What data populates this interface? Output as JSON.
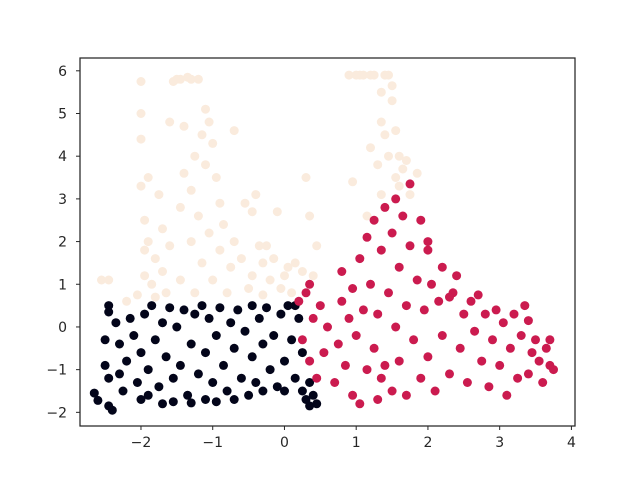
{
  "chart_data": {
    "type": "scatter",
    "title": "",
    "xlabel": "",
    "ylabel": "",
    "xlim": [
      -2.85,
      4.05
    ],
    "ylim": [
      -2.32,
      6.3
    ],
    "xticks": [
      -2,
      -1,
      0,
      1,
      2,
      3,
      4
    ],
    "yticks": [
      -2,
      -1,
      0,
      1,
      2,
      3,
      4,
      5,
      6
    ],
    "xtick_labels": [
      "−2",
      "−1",
      "0",
      "1",
      "2",
      "3",
      "4"
    ],
    "ytick_labels": [
      "−2",
      "−1",
      "0",
      "1",
      "2",
      "3",
      "4",
      "5",
      "6"
    ],
    "grid": false,
    "legend": "none",
    "colors": {
      "cluster_0": "#03051a",
      "cluster_1": "#faebdd",
      "cluster_2": "#cb1b4f"
    },
    "series": [
      {
        "cluster": 0,
        "color": "#03051a",
        "points": [
          [
            -2.65,
            -1.55
          ],
          [
            -2.6,
            -1.72
          ],
          [
            -2.45,
            -1.85
          ],
          [
            -2.4,
            -1.95
          ],
          [
            -2.45,
            0.5
          ],
          [
            -2.45,
            0.35
          ],
          [
            -2.5,
            -0.3
          ],
          [
            -2.5,
            -0.9
          ],
          [
            -2.45,
            -1.2
          ],
          [
            -2.35,
            0.1
          ],
          [
            -2.3,
            -0.4
          ],
          [
            -2.3,
            -1.1
          ],
          [
            -2.25,
            -1.5
          ],
          [
            -2.2,
            -0.8
          ],
          [
            -2.15,
            0.2
          ],
          [
            -2.1,
            -0.2
          ],
          [
            -2.05,
            -1.3
          ],
          [
            -2.0,
            -0.6
          ],
          [
            -2.0,
            -1.7
          ],
          [
            -1.95,
            0.3
          ],
          [
            -1.9,
            -1.0
          ],
          [
            -1.9,
            -1.6
          ],
          [
            -1.85,
            0.5
          ],
          [
            -1.8,
            -0.3
          ],
          [
            -1.75,
            -1.4
          ],
          [
            -1.7,
            0.1
          ],
          [
            -1.7,
            -1.8
          ],
          [
            -1.65,
            -0.7
          ],
          [
            -1.6,
            0.45
          ],
          [
            -1.55,
            -1.2
          ],
          [
            -1.55,
            -1.75
          ],
          [
            -1.5,
            0.0
          ],
          [
            -1.45,
            -0.9
          ],
          [
            -1.4,
            0.4
          ],
          [
            -1.35,
            -1.6
          ],
          [
            -1.3,
            -0.4
          ],
          [
            -1.3,
            -1.78
          ],
          [
            -1.25,
            0.3
          ],
          [
            -1.2,
            -1.1
          ],
          [
            -1.15,
            0.5
          ],
          [
            -1.1,
            -0.6
          ],
          [
            -1.1,
            -1.7
          ],
          [
            -1.05,
            0.2
          ],
          [
            -1.0,
            -1.3
          ],
          [
            -0.95,
            -0.2
          ],
          [
            -0.95,
            -1.75
          ],
          [
            -0.9,
            0.45
          ],
          [
            -0.85,
            -0.9
          ],
          [
            -0.8,
            -1.5
          ],
          [
            -0.75,
            0.1
          ],
          [
            -0.7,
            -0.5
          ],
          [
            -0.7,
            -1.7
          ],
          [
            -0.65,
            0.4
          ],
          [
            -0.6,
            -1.2
          ],
          [
            -0.55,
            -0.1
          ],
          [
            -0.5,
            -1.6
          ],
          [
            -0.45,
            0.5
          ],
          [
            -0.45,
            -0.7
          ],
          [
            -0.4,
            -1.3
          ],
          [
            -0.35,
            0.2
          ],
          [
            -0.3,
            -0.4
          ],
          [
            -0.3,
            -1.5
          ],
          [
            -0.25,
            0.45
          ],
          [
            -0.2,
            -1.0
          ],
          [
            -0.15,
            -0.2
          ],
          [
            -0.1,
            -1.4
          ],
          [
            -0.05,
            0.3
          ],
          [
            0.0,
            -0.8
          ],
          [
            0.0,
            -1.5
          ],
          [
            0.05,
            0.5
          ],
          [
            0.1,
            -0.3
          ],
          [
            0.15,
            -1.2
          ],
          [
            0.2,
            0.2
          ],
          [
            0.25,
            -0.6
          ],
          [
            0.25,
            -1.5
          ],
          [
            0.3,
            -1.7
          ],
          [
            0.35,
            -1.85
          ],
          [
            0.4,
            -1.6
          ],
          [
            0.45,
            -1.8
          ],
          [
            0.15,
            0.5
          ],
          [
            0.35,
            -1.3
          ]
        ]
      },
      {
        "cluster": 1,
        "color": "#faebdd",
        "points": [
          [
            -2.55,
            1.1
          ],
          [
            -2.45,
            1.1
          ],
          [
            -2.2,
            0.6
          ],
          [
            -2.05,
            0.75
          ],
          [
            -2.0,
            5.75
          ],
          [
            -2.0,
            5.0
          ],
          [
            -2.0,
            4.4
          ],
          [
            -2.0,
            3.3
          ],
          [
            -1.95,
            2.5
          ],
          [
            -1.95,
            1.8
          ],
          [
            -1.95,
            1.2
          ],
          [
            -1.9,
            3.5
          ],
          [
            -1.9,
            2.0
          ],
          [
            -1.85,
            1.0
          ],
          [
            -1.8,
            1.6
          ],
          [
            -1.8,
            0.7
          ],
          [
            -1.75,
            3.1
          ],
          [
            -1.7,
            2.3
          ],
          [
            -1.7,
            1.3
          ],
          [
            -1.65,
            0.8
          ],
          [
            -1.6,
            4.8
          ],
          [
            -1.6,
            1.9
          ],
          [
            -1.55,
            5.75
          ],
          [
            -1.5,
            5.8
          ],
          [
            -1.45,
            5.8
          ],
          [
            -1.45,
            2.8
          ],
          [
            -1.45,
            1.1
          ],
          [
            -1.4,
            4.7
          ],
          [
            -1.4,
            3.6
          ],
          [
            -1.35,
            5.85
          ],
          [
            -1.3,
            5.8
          ],
          [
            -1.3,
            3.2
          ],
          [
            -1.3,
            2.0
          ],
          [
            -1.25,
            4.0
          ],
          [
            -1.25,
            0.8
          ],
          [
            -1.2,
            5.8
          ],
          [
            -1.2,
            2.6
          ],
          [
            -1.15,
            4.5
          ],
          [
            -1.15,
            1.5
          ],
          [
            -1.1,
            5.1
          ],
          [
            -1.1,
            3.8
          ],
          [
            -1.05,
            4.8
          ],
          [
            -1.05,
            2.2
          ],
          [
            -1.0,
            4.3
          ],
          [
            -1.0,
            1.1
          ],
          [
            -0.95,
            3.5
          ],
          [
            -0.9,
            2.9
          ],
          [
            -0.9,
            1.8
          ],
          [
            -0.85,
            2.4
          ],
          [
            -0.8,
            0.8
          ],
          [
            -0.75,
            1.4
          ],
          [
            -0.7,
            2.0
          ],
          [
            -0.7,
            4.6
          ],
          [
            -0.6,
            1.6
          ],
          [
            -0.55,
            2.9
          ],
          [
            -0.5,
            0.9
          ],
          [
            -0.45,
            2.7
          ],
          [
            -0.45,
            1.2
          ],
          [
            -0.4,
            3.1
          ],
          [
            -0.35,
            1.9
          ],
          [
            -0.3,
            1.5
          ],
          [
            -0.3,
            0.75
          ],
          [
            -0.25,
            1.9
          ],
          [
            -0.2,
            1.1
          ],
          [
            -0.15,
            1.6
          ],
          [
            -0.1,
            2.7
          ],
          [
            -0.05,
            0.9
          ],
          [
            0.0,
            1.2
          ],
          [
            0.05,
            1.4
          ],
          [
            0.1,
            0.8
          ],
          [
            0.15,
            1.5
          ],
          [
            0.25,
            1.3
          ],
          [
            0.3,
            3.5
          ],
          [
            0.35,
            2.6
          ],
          [
            0.4,
            1.2
          ],
          [
            0.45,
            1.9
          ],
          [
            0.9,
            5.9
          ],
          [
            0.95,
            3.4
          ],
          [
            1.0,
            5.9
          ],
          [
            1.05,
            5.9
          ],
          [
            1.1,
            5.9
          ],
          [
            1.15,
            2.6
          ],
          [
            1.2,
            5.9
          ],
          [
            1.2,
            4.2
          ],
          [
            1.25,
            5.9
          ],
          [
            1.3,
            3.8
          ],
          [
            1.35,
            5.5
          ],
          [
            1.35,
            4.8
          ],
          [
            1.35,
            3.1
          ],
          [
            1.4,
            5.9
          ],
          [
            1.4,
            4.5
          ],
          [
            1.45,
            5.9
          ],
          [
            1.45,
            4.0
          ],
          [
            1.5,
            5.65
          ],
          [
            1.5,
            5.3
          ],
          [
            1.55,
            4.6
          ],
          [
            1.55,
            3.5
          ],
          [
            1.6,
            4.0
          ],
          [
            1.65,
            3.7
          ],
          [
            1.7,
            3.9
          ],
          [
            1.75,
            3.1
          ],
          [
            1.85,
            3.6
          ],
          [
            1.6,
            3.3
          ]
        ]
      },
      {
        "cluster": 2,
        "color": "#cb1b4f",
        "points": [
          [
            0.2,
            0.6
          ],
          [
            0.25,
            -0.3
          ],
          [
            0.3,
            0.8
          ],
          [
            0.35,
            -0.8
          ],
          [
            0.35,
            1.0
          ],
          [
            0.4,
            0.2
          ],
          [
            0.45,
            -1.2
          ],
          [
            0.5,
            0.5
          ],
          [
            0.55,
            -0.6
          ],
          [
            0.6,
            0.0
          ],
          [
            0.7,
            -1.3
          ],
          [
            0.75,
            -0.4
          ],
          [
            0.8,
            0.6
          ],
          [
            0.8,
            1.3
          ],
          [
            0.85,
            -0.9
          ],
          [
            0.9,
            0.2
          ],
          [
            0.95,
            0.9
          ],
          [
            0.95,
            -1.6
          ],
          [
            1.0,
            -0.2
          ],
          [
            1.05,
            1.6
          ],
          [
            1.05,
            -1.8
          ],
          [
            1.1,
            0.4
          ],
          [
            1.15,
            -1.0
          ],
          [
            1.15,
            2.1
          ],
          [
            1.2,
            1.0
          ],
          [
            1.25,
            -0.5
          ],
          [
            1.25,
            2.5
          ],
          [
            1.3,
            0.3
          ],
          [
            1.3,
            -1.7
          ],
          [
            1.35,
            1.8
          ],
          [
            1.4,
            2.8
          ],
          [
            1.4,
            -0.9
          ],
          [
            1.45,
            0.8
          ],
          [
            1.5,
            2.2
          ],
          [
            1.5,
            -1.5
          ],
          [
            1.55,
            3.0
          ],
          [
            1.55,
            0.0
          ],
          [
            1.6,
            1.4
          ],
          [
            1.6,
            -0.8
          ],
          [
            1.65,
            2.6
          ],
          [
            1.7,
            0.5
          ],
          [
            1.7,
            -1.6
          ],
          [
            1.75,
            3.35
          ],
          [
            1.75,
            1.9
          ],
          [
            1.8,
            -0.3
          ],
          [
            1.85,
            1.1
          ],
          [
            1.9,
            2.5
          ],
          [
            1.9,
            -1.2
          ],
          [
            1.95,
            0.4
          ],
          [
            2.0,
            1.8
          ],
          [
            2.0,
            -0.7
          ],
          [
            2.05,
            1.0
          ],
          [
            2.1,
            -1.5
          ],
          [
            2.15,
            0.6
          ],
          [
            2.2,
            1.4
          ],
          [
            2.2,
            -0.2
          ],
          [
            2.3,
            -1.1
          ],
          [
            2.35,
            0.8
          ],
          [
            2.4,
            1.2
          ],
          [
            2.45,
            -0.5
          ],
          [
            2.5,
            0.3
          ],
          [
            2.55,
            -1.3
          ],
          [
            2.6,
            0.6
          ],
          [
            2.65,
            -0.1
          ],
          [
            2.7,
            0.75
          ],
          [
            2.75,
            -0.8
          ],
          [
            2.8,
            0.3
          ],
          [
            2.85,
            -1.4
          ],
          [
            2.9,
            -0.3
          ],
          [
            2.95,
            0.4
          ],
          [
            3.0,
            -0.9
          ],
          [
            3.05,
            0.1
          ],
          [
            3.1,
            -1.6
          ],
          [
            3.15,
            -0.5
          ],
          [
            3.2,
            0.3
          ],
          [
            3.25,
            -1.2
          ],
          [
            3.3,
            -0.2
          ],
          [
            3.35,
            0.5
          ],
          [
            3.4,
            -1.1
          ],
          [
            3.45,
            -0.6
          ],
          [
            3.5,
            -0.3
          ],
          [
            3.55,
            -0.8
          ],
          [
            3.6,
            -1.3
          ],
          [
            3.65,
            -0.5
          ],
          [
            3.7,
            -0.9
          ],
          [
            3.7,
            -0.3
          ],
          [
            3.75,
            -1.0
          ],
          [
            3.4,
            0.15
          ],
          [
            2.3,
            0.7
          ],
          [
            1.35,
            -1.2
          ],
          [
            2.0,
            2.0
          ]
        ]
      }
    ]
  }
}
